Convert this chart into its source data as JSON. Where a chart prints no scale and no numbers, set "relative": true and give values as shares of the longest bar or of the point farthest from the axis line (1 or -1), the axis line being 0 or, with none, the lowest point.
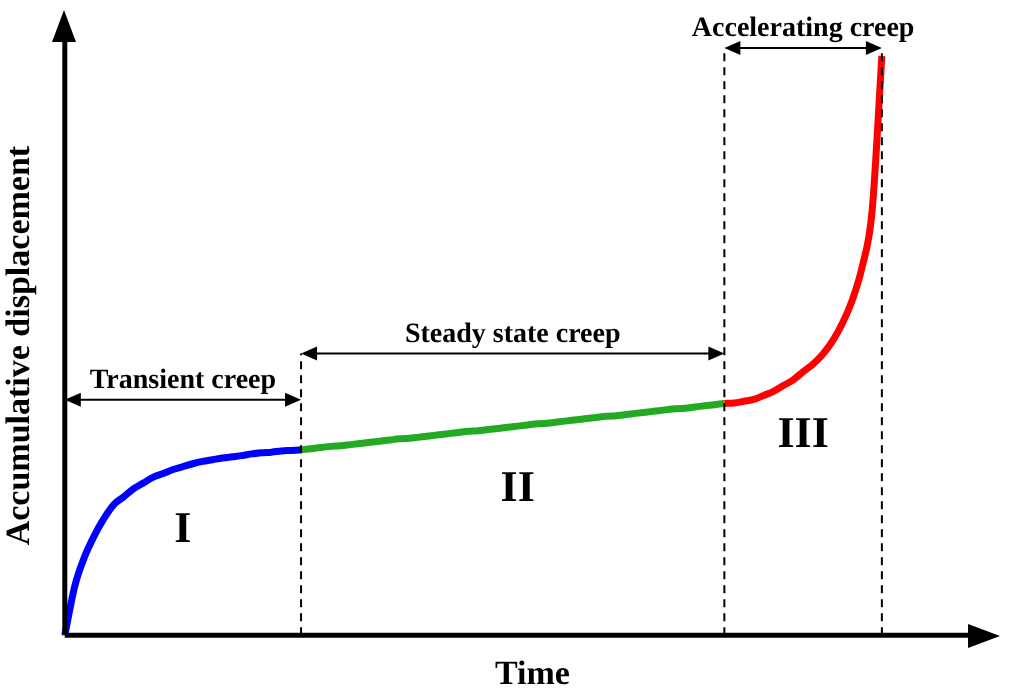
{
  "chart_data": {
    "type": "line",
    "relative": true,
    "xlabel": "Time",
    "ylabel": "Accumulative displacement",
    "annotations": [
      "Transient creep",
      "Steady state creep",
      "Accelerating creep",
      "I",
      "II",
      "III"
    ],
    "categories": [
      null,
      null,
      null,
      null,
      null,
      null,
      null,
      null,
      null,
      null,
      null,
      null,
      null,
      null,
      null,
      null,
      null,
      null,
      null,
      null,
      null,
      null,
      null,
      null,
      null,
      null,
      null,
      null,
      null,
      null,
      null,
      null,
      null,
      null,
      null,
      null,
      null,
      null,
      null,
      null,
      null,
      null,
      null,
      null,
      null,
      null,
      null,
      null,
      null,
      null,
      null,
      null,
      null,
      null,
      null,
      null,
      null,
      null,
      null,
      null,
      null,
      null,
      null,
      null,
      null,
      null,
      null,
      null,
      null,
      null,
      null,
      null,
      null,
      null,
      null,
      null,
      null,
      null,
      null,
      null,
      null,
      null,
      null,
      null,
      null,
      null,
      null,
      null,
      null,
      null,
      null,
      null,
      null,
      null,
      null,
      null
    ],
    "series": [
      {
        "color": "#0000ff",
        "values": [
          0,
          0.084,
          0.135,
          0.172,
          0.202,
          0.226,
          0.239,
          0.253,
          0.263,
          0.273,
          0.279,
          0.286,
          0.291,
          0.296,
          0.3,
          0.303,
          0.306,
          0.308,
          0.31,
          0.313,
          0.315,
          0.316,
          0.318,
          0.319,
          0.32,
          null,
          null,
          null,
          null,
          null,
          null,
          null,
          null,
          null,
          null,
          null,
          null,
          null,
          null,
          null,
          null,
          null,
          null,
          null,
          null,
          null,
          null,
          null,
          null,
          null,
          null,
          null,
          null,
          null,
          null,
          null,
          null,
          null,
          null,
          null,
          null,
          null,
          null,
          null,
          null,
          null,
          null,
          null,
          null,
          null,
          null,
          null,
          null,
          null,
          null,
          null,
          null,
          null,
          null,
          null,
          null,
          null,
          null,
          null,
          null,
          null,
          null,
          null,
          null,
          null,
          null,
          null,
          null,
          null,
          null,
          null
        ]
      },
      {
        "color": "#22aa22",
        "values": [
          null,
          null,
          null,
          null,
          null,
          null,
          null,
          null,
          null,
          null,
          null,
          null,
          null,
          null,
          null,
          null,
          null,
          null,
          null,
          null,
          null,
          null,
          null,
          null,
          0.32,
          0.322,
          0.324,
          0.326,
          0.327,
          0.329,
          0.331,
          0.333,
          0.335,
          0.337,
          0.339,
          0.34,
          0.342,
          0.344,
          0.346,
          0.348,
          0.35,
          0.352,
          0.353,
          0.355,
          0.357,
          0.359,
          0.361,
          0.363,
          0.365,
          0.366,
          0.368,
          0.37,
          0.372,
          0.374,
          0.376,
          0.378,
          0.379,
          0.381,
          0.383,
          0.385,
          0.387,
          0.389,
          0.391,
          0.392,
          0.394,
          0.396,
          0.398,
          0.4,
          null,
          null,
          null,
          null,
          null,
          null,
          null,
          null,
          null,
          null,
          null,
          null,
          null,
          null,
          null,
          null,
          null,
          null,
          null,
          null,
          null,
          null,
          null,
          null,
          null,
          null,
          null,
          null
        ]
      },
      {
        "color": "#ff0000",
        "values": [
          null,
          null,
          null,
          null,
          null,
          null,
          null,
          null,
          null,
          null,
          null,
          null,
          null,
          null,
          null,
          null,
          null,
          null,
          null,
          null,
          null,
          null,
          null,
          null,
          null,
          null,
          null,
          null,
          null,
          null,
          null,
          null,
          null,
          null,
          null,
          null,
          null,
          null,
          null,
          null,
          null,
          null,
          null,
          null,
          null,
          null,
          null,
          null,
          null,
          null,
          null,
          null,
          null,
          null,
          null,
          null,
          null,
          null,
          null,
          null,
          null,
          null,
          null,
          null,
          null,
          null,
          null,
          0.4,
          0.401,
          0.404,
          0.407,
          0.414,
          0.421,
          0.431,
          0.441,
          0.455,
          0.468,
          0.485,
          0.508,
          0.539,
          0.579,
          0.636,
          0.731,
          1,
          null,
          null,
          null,
          null,
          null,
          null,
          null,
          null,
          null,
          null,
          null,
          null
        ]
      }
    ]
  }
}
